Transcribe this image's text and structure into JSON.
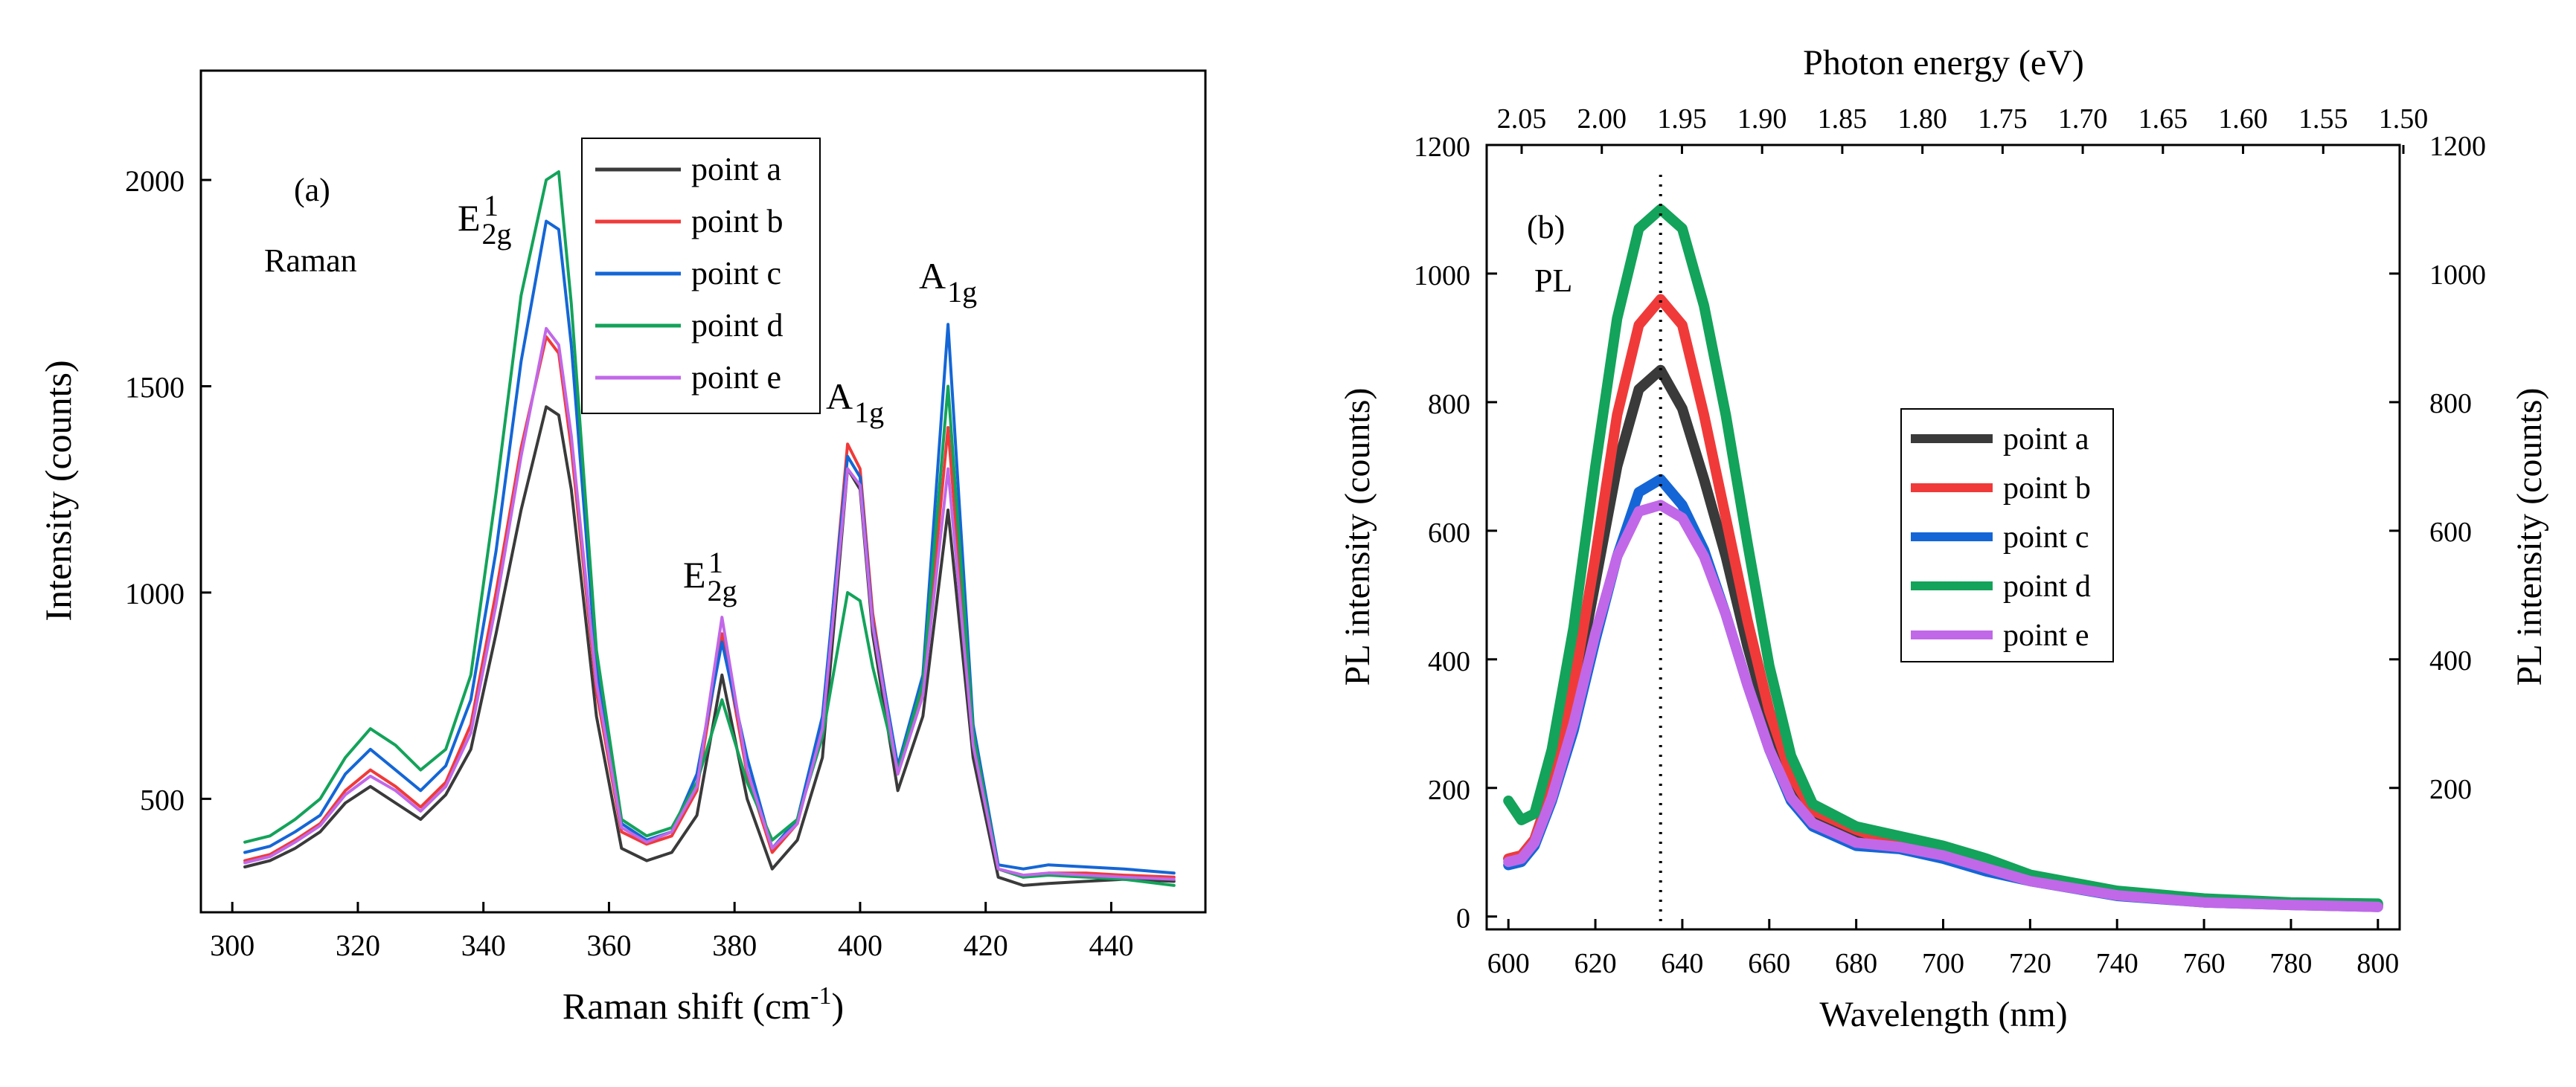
{
  "chart_data": [
    {
      "type": "line",
      "panel_label": "(a)",
      "annotation": "Raman",
      "xlabel": "Raman shift (cm",
      "xlabel_sup": "-1",
      "xlabel_end": ")",
      "ylabel": "Intensity (counts)",
      "xlim": [
        295,
        455
      ],
      "ylim": [
        225,
        2265
      ],
      "xticks": [
        300,
        320,
        340,
        360,
        380,
        400,
        420,
        440
      ],
      "yticks": [
        500,
        1000,
        1500,
        2000
      ],
      "peak_labels": [
        {
          "base": "E",
          "sup": "1",
          "sub": "2g",
          "x": 350,
          "y": 2000
        },
        {
          "base": "E",
          "sup": "1",
          "sub": "2g",
          "x": 377,
          "y": 1000
        },
        {
          "base": "A",
          "sub": "1g",
          "x": 400,
          "y": 1440
        },
        {
          "base": "A",
          "sub": "1g",
          "x": 413,
          "y": 1700
        }
      ],
      "legend": {
        "position": "top-center"
      },
      "x": [
        302,
        306,
        310,
        314,
        318,
        322,
        326,
        330,
        334,
        338,
        342,
        346,
        350,
        352,
        354,
        358,
        362,
        366,
        370,
        374,
        378,
        382,
        386,
        390,
        394,
        398,
        400,
        402,
        406,
        410,
        414,
        418,
        422,
        426,
        430,
        436,
        442,
        450
      ],
      "series": [
        {
          "name": "point a",
          "color": "#3a3a3a",
          "values": [
            335,
            350,
            380,
            420,
            490,
            530,
            490,
            450,
            510,
            620,
            900,
            1200,
            1450,
            1430,
            1250,
            700,
            380,
            350,
            370,
            460,
            800,
            500,
            330,
            400,
            600,
            1300,
            1250,
            900,
            520,
            700,
            1200,
            600,
            310,
            290,
            295,
            300,
            305,
            300
          ]
        },
        {
          "name": "point b",
          "color": "#f03a3a",
          "values": [
            350,
            365,
            400,
            440,
            520,
            570,
            530,
            480,
            540,
            680,
            1000,
            1350,
            1620,
            1580,
            1350,
            760,
            420,
            390,
            410,
            520,
            900,
            560,
            370,
            440,
            680,
            1360,
            1300,
            950,
            560,
            760,
            1400,
            640,
            330,
            310,
            320,
            320,
            315,
            310
          ]
        },
        {
          "name": "point c",
          "color": "#1466d6",
          "values": [
            370,
            385,
            420,
            460,
            560,
            620,
            570,
            520,
            580,
            740,
            1100,
            1560,
            1900,
            1880,
            1600,
            820,
            440,
            400,
            420,
            560,
            880,
            600,
            380,
            450,
            700,
            1330,
            1280,
            930,
            580,
            800,
            1650,
            680,
            340,
            330,
            340,
            335,
            330,
            320
          ]
        },
        {
          "name": "point d",
          "color": "#13a35a",
          "values": [
            395,
            410,
            450,
            500,
            600,
            670,
            630,
            570,
            620,
            800,
            1240,
            1720,
            2000,
            2020,
            1700,
            860,
            450,
            410,
            430,
            540,
            740,
            540,
            400,
            450,
            650,
            1000,
            980,
            820,
            570,
            780,
            1500,
            660,
            330,
            310,
            315,
            310,
            305,
            290
          ]
        },
        {
          "name": "point e",
          "color": "#c168e8",
          "values": [
            345,
            360,
            395,
            435,
            510,
            555,
            520,
            470,
            530,
            660,
            970,
            1330,
            1640,
            1600,
            1380,
            780,
            430,
            395,
            420,
            530,
            940,
            570,
            380,
            440,
            670,
            1300,
            1260,
            920,
            560,
            750,
            1300,
            630,
            330,
            315,
            320,
            315,
            310,
            305
          ]
        }
      ]
    },
    {
      "type": "line",
      "panel_label": "(b)",
      "annotation": "PL",
      "xlabel": "Wavelength (nm)",
      "ylabel": "PL intensity (counts)",
      "ylabel_right": "PL intensity (counts)",
      "top_xlabel": "Photon energy (eV)",
      "xlim": [
        595,
        805
      ],
      "ylim": [
        -20,
        1200
      ],
      "xticks": [
        600,
        620,
        640,
        660,
        680,
        700,
        720,
        740,
        760,
        780,
        800
      ],
      "yticks": [
        0,
        200,
        400,
        600,
        800,
        1000,
        1200
      ],
      "yticks_right": [
        200,
        400,
        600,
        800,
        1000,
        1200
      ],
      "top_ticks": [
        "2.05",
        "2.00",
        "1.95",
        "1.90",
        "1.85",
        "1.80",
        "1.75",
        "1.70",
        "1.65",
        "1.60",
        "1.55",
        "1.50"
      ],
      "dotted_marker_x": 635,
      "legend": {
        "position": "center-right"
      },
      "x": [
        600,
        603,
        606,
        610,
        615,
        620,
        625,
        630,
        635,
        640,
        645,
        650,
        655,
        660,
        665,
        670,
        680,
        690,
        700,
        710,
        720,
        740,
        760,
        780,
        800
      ],
      "series": [
        {
          "name": "point a",
          "color": "#3a3a3a",
          "values": [
            90,
            95,
            120,
            200,
            340,
            520,
            700,
            820,
            850,
            790,
            680,
            560,
            420,
            300,
            210,
            160,
            130,
            110,
            100,
            80,
            60,
            35,
            25,
            20,
            18
          ]
        },
        {
          "name": "point b",
          "color": "#f03a3a",
          "values": [
            90,
            95,
            120,
            200,
            360,
            560,
            780,
            920,
            960,
            920,
            780,
            620,
            460,
            320,
            220,
            165,
            135,
            112,
            100,
            80,
            60,
            35,
            25,
            20,
            18
          ]
        },
        {
          "name": "point c",
          "color": "#1466d6",
          "values": [
            80,
            85,
            110,
            180,
            290,
            430,
            560,
            660,
            680,
            640,
            570,
            470,
            360,
            260,
            180,
            140,
            110,
            105,
            90,
            70,
            55,
            32,
            22,
            18,
            15
          ]
        },
        {
          "name": "point d",
          "color": "#13a35a",
          "values": [
            180,
            150,
            160,
            260,
            450,
            700,
            930,
            1070,
            1100,
            1070,
            950,
            780,
            580,
            390,
            250,
            175,
            140,
            125,
            110,
            90,
            65,
            40,
            28,
            22,
            20
          ]
        },
        {
          "name": "point e",
          "color": "#c168e8",
          "values": [
            85,
            90,
            115,
            185,
            300,
            440,
            560,
            630,
            640,
            620,
            560,
            470,
            360,
            260,
            185,
            145,
            115,
            108,
            95,
            75,
            55,
            33,
            22,
            18,
            15
          ]
        }
      ]
    }
  ]
}
